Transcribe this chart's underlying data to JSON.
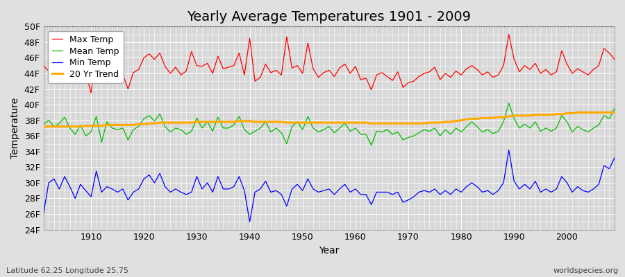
{
  "title": "Yearly Average Temperatures 1901 - 2009",
  "xlabel": "Year",
  "ylabel": "Temperature",
  "subtitle_left": "Latitude 62.25 Longitude 25.75",
  "subtitle_right": "worldspecies.org",
  "years": [
    1901,
    1902,
    1903,
    1904,
    1905,
    1906,
    1907,
    1908,
    1909,
    1910,
    1911,
    1912,
    1913,
    1914,
    1915,
    1916,
    1917,
    1918,
    1919,
    1920,
    1921,
    1922,
    1923,
    1924,
    1925,
    1926,
    1927,
    1928,
    1929,
    1930,
    1931,
    1932,
    1933,
    1934,
    1935,
    1936,
    1937,
    1938,
    1939,
    1940,
    1941,
    1942,
    1943,
    1944,
    1945,
    1946,
    1947,
    1948,
    1949,
    1950,
    1951,
    1952,
    1953,
    1954,
    1955,
    1956,
    1957,
    1958,
    1959,
    1960,
    1961,
    1962,
    1963,
    1964,
    1965,
    1966,
    1967,
    1968,
    1969,
    1970,
    1971,
    1972,
    1973,
    1974,
    1975,
    1976,
    1977,
    1978,
    1979,
    1980,
    1981,
    1982,
    1983,
    1984,
    1985,
    1986,
    1987,
    1988,
    1989,
    1990,
    1991,
    1992,
    1993,
    1994,
    1995,
    1996,
    1997,
    1998,
    1999,
    2000,
    2001,
    2002,
    2003,
    2004,
    2005,
    2006,
    2007,
    2008,
    2009
  ],
  "max_temp": [
    45.0,
    44.3,
    45.5,
    44.0,
    45.3,
    44.8,
    43.2,
    44.6,
    44.1,
    41.5,
    47.0,
    44.2,
    44.8,
    44.2,
    43.5,
    43.9,
    42.0,
    44.1,
    44.5,
    46.0,
    46.5,
    45.8,
    46.6,
    44.9,
    44.0,
    44.8,
    43.8,
    44.3,
    46.8,
    45.0,
    44.9,
    45.3,
    44.0,
    46.2,
    44.6,
    44.8,
    45.0,
    46.6,
    43.8,
    48.5,
    43.0,
    43.5,
    45.2,
    44.1,
    44.4,
    43.8,
    48.7,
    44.7,
    45.0,
    44.0,
    47.9,
    44.6,
    43.5,
    44.1,
    44.4,
    43.6,
    44.7,
    45.2,
    44.0,
    44.9,
    43.2,
    43.4,
    41.9,
    43.8,
    44.1,
    43.6,
    43.1,
    44.2,
    42.2,
    42.8,
    43.0,
    43.6,
    44.0,
    44.2,
    44.8,
    43.2,
    44.0,
    43.5,
    44.3,
    43.8,
    44.6,
    45.0,
    44.5,
    43.8,
    44.2,
    43.5,
    43.8,
    45.0,
    49.0,
    45.8,
    44.2,
    45.0,
    44.5,
    45.3,
    44.0,
    44.5,
    43.8,
    44.2,
    46.9,
    45.2,
    44.0,
    44.6,
    44.2,
    43.8,
    44.5,
    45.0,
    47.2,
    46.6,
    45.8
  ],
  "mean_temp": [
    37.5,
    38.0,
    37.2,
    37.6,
    38.4,
    37.0,
    36.2,
    37.4,
    36.0,
    36.5,
    38.5,
    35.2,
    37.8,
    37.0,
    36.8,
    37.0,
    35.5,
    36.8,
    37.2,
    38.2,
    38.6,
    37.9,
    38.8,
    37.2,
    36.5,
    37.0,
    36.8,
    36.2,
    36.6,
    38.3,
    37.0,
    37.8,
    36.6,
    38.4,
    37.0,
    37.0,
    37.4,
    38.5,
    36.8,
    36.2,
    36.6,
    37.0,
    37.8,
    36.5,
    37.0,
    36.4,
    35.0,
    37.2,
    37.8,
    36.8,
    38.5,
    37.0,
    36.5,
    36.8,
    37.2,
    36.4,
    37.0,
    37.6,
    36.6,
    37.0,
    36.2,
    36.2,
    34.8,
    36.6,
    36.5,
    36.8,
    36.2,
    36.5,
    35.5,
    35.8,
    36.0,
    36.4,
    36.8,
    36.6,
    37.0,
    36.0,
    36.8,
    36.2,
    37.0,
    36.5,
    37.2,
    37.8,
    37.2,
    36.5,
    36.8,
    36.3,
    36.6,
    37.8,
    40.2,
    38.2,
    37.0,
    37.5,
    37.0,
    37.8,
    36.6,
    37.0,
    36.6,
    37.0,
    38.6,
    37.8,
    36.5,
    37.2,
    36.8,
    36.5,
    37.0,
    37.4,
    38.6,
    38.2,
    39.5
  ],
  "min_temp": [
    26.0,
    30.0,
    30.5,
    29.2,
    30.8,
    29.5,
    28.0,
    29.8,
    29.0,
    28.2,
    31.5,
    28.8,
    29.5,
    29.2,
    28.8,
    29.2,
    27.8,
    28.8,
    29.2,
    30.5,
    31.0,
    30.0,
    31.2,
    29.5,
    28.8,
    29.2,
    28.8,
    28.5,
    28.8,
    30.8,
    29.2,
    30.0,
    28.8,
    30.8,
    29.2,
    29.2,
    29.5,
    30.8,
    29.0,
    25.0,
    28.8,
    29.2,
    30.2,
    28.8,
    29.0,
    28.5,
    27.0,
    29.2,
    29.8,
    29.0,
    30.5,
    29.2,
    28.8,
    29.0,
    29.2,
    28.5,
    29.2,
    29.8,
    28.8,
    29.2,
    28.5,
    28.5,
    27.2,
    28.8,
    28.8,
    28.8,
    28.5,
    28.8,
    27.5,
    27.8,
    28.2,
    28.8,
    29.0,
    28.8,
    29.2,
    28.5,
    29.0,
    28.5,
    29.2,
    28.8,
    29.5,
    30.0,
    29.5,
    28.8,
    29.0,
    28.5,
    29.0,
    30.0,
    34.2,
    30.2,
    29.2,
    29.8,
    29.2,
    30.2,
    28.8,
    29.2,
    28.8,
    29.2,
    30.8,
    30.0,
    28.8,
    29.5,
    29.0,
    28.8,
    29.2,
    29.8,
    32.2,
    31.8,
    33.2
  ],
  "trend_vals": [
    37.2,
    37.2,
    37.2,
    37.2,
    37.2,
    37.2,
    37.2,
    37.2,
    37.3,
    37.3,
    37.3,
    37.3,
    37.4,
    37.4,
    37.4,
    37.4,
    37.4,
    37.4,
    37.5,
    37.5,
    37.6,
    37.6,
    37.7,
    37.7,
    37.7,
    37.7,
    37.7,
    37.7,
    37.7,
    37.8,
    37.8,
    37.8,
    37.8,
    37.8,
    37.8,
    37.8,
    37.8,
    37.9,
    37.9,
    37.9,
    37.8,
    37.8,
    37.8,
    37.8,
    37.8,
    37.8,
    37.7,
    37.7,
    37.7,
    37.7,
    37.7,
    37.7,
    37.7,
    37.7,
    37.7,
    37.7,
    37.7,
    37.7,
    37.7,
    37.7,
    37.7,
    37.7,
    37.6,
    37.6,
    37.6,
    37.6,
    37.6,
    37.6,
    37.6,
    37.6,
    37.6,
    37.6,
    37.6,
    37.7,
    37.7,
    37.7,
    37.8,
    37.8,
    37.9,
    38.0,
    38.1,
    38.2,
    38.2,
    38.3,
    38.3,
    38.3,
    38.4,
    38.4,
    38.5,
    38.6,
    38.6,
    38.6,
    38.6,
    38.7,
    38.7,
    38.7,
    38.7,
    38.8,
    38.8,
    38.9,
    38.9,
    39.0,
    39.0,
    39.0,
    39.0,
    39.0,
    39.0,
    39.0,
    39.0
  ],
  "ylim": [
    24,
    50
  ],
  "yticks": [
    24,
    26,
    28,
    30,
    32,
    34,
    36,
    38,
    40,
    42,
    44,
    46,
    48,
    50
  ],
  "ytick_labels": [
    "24F",
    "26F",
    "28F",
    "30F",
    "32F",
    "34F",
    "36F",
    "38F",
    "40F",
    "42F",
    "44F",
    "46F",
    "48F",
    "50F"
  ],
  "xticks": [
    1901,
    1910,
    1920,
    1930,
    1940,
    1950,
    1960,
    1970,
    1980,
    1990,
    2000,
    2009
  ],
  "xtick_labels": [
    "",
    "1910",
    "1920",
    "1930",
    "1940",
    "1950",
    "1960",
    "1970",
    "1980",
    "1990",
    "2000",
    ""
  ],
  "max_color": "#ff0000",
  "mean_color": "#00bb00",
  "min_color": "#0000ff",
  "trend_color": "#ffaa00",
  "bg_color": "#e0e0e0",
  "plot_bg_color": "#d8d8d8",
  "grid_color": "#ffffff",
  "hline_color": "#555555",
  "title_fontsize": 14,
  "label_fontsize": 10,
  "tick_fontsize": 9,
  "legend_fontsize": 9
}
